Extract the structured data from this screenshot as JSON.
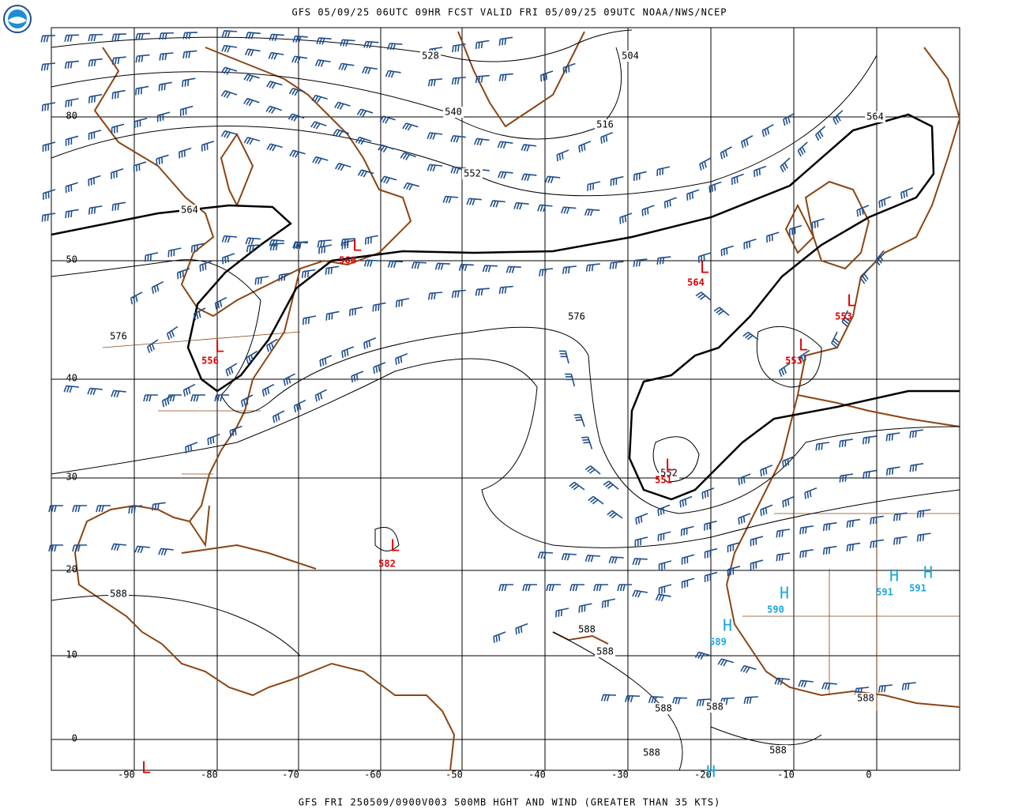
{
  "header": {
    "title": "GFS 05/09/25 06UTC 09HR FCST VALID FRI 05/09/25 09UTC NOAA/NWS/NCEP"
  },
  "footer": {
    "title": "GFS FRI 250509/0900V003 500MB HGHT AND WIND (GREATER THAN 35 KTS)"
  },
  "latitude_labels": [
    80,
    50,
    40,
    30,
    20,
    10,
    0
  ],
  "longitude_labels": [
    -90,
    -80,
    -70,
    -60,
    -50,
    -40,
    -30,
    -20,
    -10,
    0
  ],
  "contour_labels": [
    528,
    504,
    540,
    516,
    552,
    564,
    564,
    576,
    576,
    552,
    588,
    588,
    588,
    588,
    588,
    588,
    588,
    588
  ],
  "centers": [
    {
      "type": "L",
      "value": 560
    },
    {
      "type": "L",
      "value": 564
    },
    {
      "type": "L",
      "value": 553
    },
    {
      "type": "L",
      "value": 553
    },
    {
      "type": "L",
      "value": 556
    },
    {
      "type": "L",
      "value": 551
    },
    {
      "type": "L",
      "value": 582
    },
    {
      "type": "L"
    },
    {
      "type": "H",
      "value": 589
    },
    {
      "type": "H",
      "value": 590
    },
    {
      "type": "H",
      "value": 591
    },
    {
      "type": "H",
      "value": 591
    },
    {
      "type": "H"
    }
  ]
}
